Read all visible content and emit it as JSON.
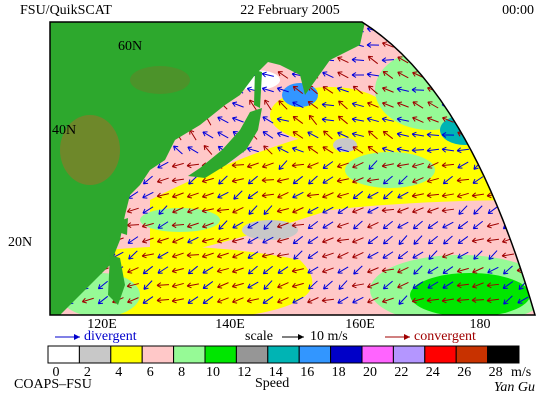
{
  "header": {
    "left": "FSU/QuikSCAT",
    "date": "22 February 2005",
    "time": "00:00"
  },
  "map": {
    "latitude_labels": [
      "60N",
      "40N",
      "20N"
    ],
    "longitude_labels": [
      "120E",
      "140E",
      "160E",
      "180"
    ]
  },
  "legend": {
    "divergent": "divergent",
    "scale": "scale",
    "scale_value": "10 m/s",
    "convergent": "convergent"
  },
  "colorbar": {
    "title": "Speed",
    "unit": "m/s",
    "labels": [
      "0",
      "2",
      "4",
      "6",
      "8",
      "10",
      "12",
      "14",
      "16",
      "18",
      "20",
      "22",
      "24",
      "26",
      "28"
    ],
    "colors": [
      "#ffffff",
      "#c8c8c8",
      "#ffff00",
      "#ffc8c8",
      "#96fa96",
      "#00e600",
      "#969696",
      "#00b4b4",
      "#3296ff",
      "#0000c8",
      "#ff64ff",
      "#b496ff",
      "#ff0000",
      "#c83200",
      "#000000"
    ]
  },
  "footer": {
    "left": "COAPS–FSU",
    "right": "Yan Gu"
  }
}
